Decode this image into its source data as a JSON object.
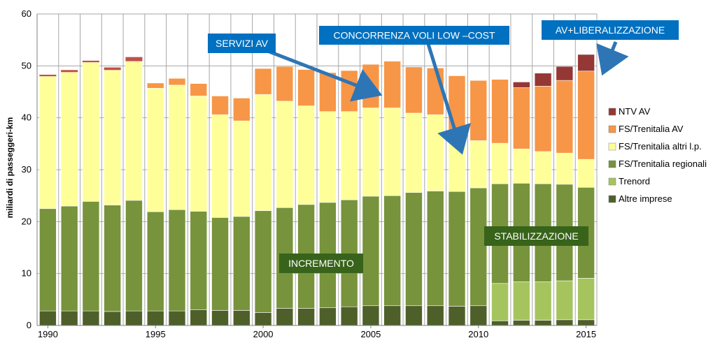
{
  "chart_data": {
    "type": "bar",
    "stacked": true,
    "ylabel": "miliardi di passeggeri-km",
    "xlabel": "",
    "ylim": [
      0,
      60
    ],
    "yticks": [
      0,
      10,
      20,
      30,
      40,
      50,
      60
    ],
    "xtick_labels": [
      "1990",
      "1995",
      "2000",
      "2005",
      "2010",
      "2015"
    ],
    "grid": "vertical and horizontal gridlines",
    "legend_position": "right",
    "categories": [
      "1990",
      "1991",
      "1992",
      "1993",
      "1994",
      "1995",
      "1996",
      "1997",
      "1998",
      "1999",
      "2000",
      "2001",
      "2002",
      "2003",
      "2004",
      "2005",
      "2006",
      "2007",
      "2008",
      "2009",
      "2010",
      "2011",
      "2012",
      "2013",
      "2014",
      "2015"
    ],
    "series": [
      {
        "name": "Altre imprese",
        "color": "#4f5f2a",
        "values": [
          2.8,
          2.8,
          2.8,
          2.7,
          2.8,
          2.8,
          2.8,
          3.0,
          2.9,
          2.9,
          2.5,
          3.3,
          3.3,
          3.4,
          3.6,
          3.8,
          3.8,
          3.8,
          3.8,
          3.7,
          3.8,
          0.9,
          1.0,
          1.0,
          1.1,
          1.1
        ]
      },
      {
        "name": "Trenord",
        "color": "#a6c45e",
        "values": [
          0,
          0,
          0,
          0,
          0,
          0,
          0,
          0,
          0,
          0,
          0,
          0,
          0,
          0,
          0,
          0,
          0,
          0,
          0,
          0,
          0,
          7.2,
          7.4,
          7.4,
          7.5,
          8.0
        ]
      },
      {
        "name": "FS/Trenitalia regionali",
        "color": "#77933c",
        "values": [
          19.7,
          20.2,
          21.1,
          20.5,
          21.3,
          19.1,
          19.5,
          19.0,
          17.9,
          18.1,
          19.6,
          19.4,
          20.0,
          20.3,
          20.6,
          21.1,
          21.2,
          21.8,
          22.1,
          22.1,
          22.7,
          19.2,
          19.0,
          18.9,
          18.6,
          17.5
        ]
      },
      {
        "name": "FS/Trenitalia altri l.p.",
        "color": "#ffff99",
        "values": [
          25.5,
          25.8,
          26.8,
          26.0,
          26.8,
          23.8,
          24.0,
          22.2,
          19.8,
          18.4,
          22.4,
          20.5,
          19.0,
          17.5,
          17.0,
          17.0,
          16.9,
          15.3,
          14.7,
          11.5,
          9.1,
          7.8,
          6.6,
          6.2,
          6.0,
          5.4
        ]
      },
      {
        "name": "FS/Trenitalia AV",
        "color": "#f79646",
        "values": [
          0,
          0,
          0,
          0,
          0,
          1.0,
          1.3,
          2.4,
          3.6,
          4.4,
          5.0,
          6.7,
          7.0,
          7.5,
          7.9,
          8.4,
          9.0,
          8.9,
          9.0,
          10.8,
          11.6,
          12.3,
          11.8,
          12.6,
          14.0,
          17.0
        ]
      },
      {
        "name": "NTV AV",
        "color": "#953735",
        "values": [
          0,
          0,
          0,
          0,
          0,
          0,
          0,
          0,
          0,
          0,
          0,
          0,
          0,
          0,
          0,
          0,
          0,
          0,
          0,
          0,
          0,
          0,
          1.1,
          2.5,
          2.7,
          3.2
        ]
      }
    ],
    "totals_top_fill": [
      0.3,
      0.4,
      0.3,
      0.5,
      0.8,
      0,
      0,
      0,
      0,
      0,
      0,
      0,
      0,
      0,
      0,
      0,
      0,
      0,
      0,
      0,
      0,
      0,
      0,
      0,
      0,
      0
    ],
    "annotations": [
      {
        "text": "SERVIZI AV",
        "style": "blue-box"
      },
      {
        "text": "CONCORRENZA VOLI LOW –COST",
        "style": "blue-box"
      },
      {
        "text": "AV+LIBERALIZZAZIONE",
        "style": "blue-box"
      },
      {
        "text": "INCREMENTO",
        "style": "green-box"
      },
      {
        "text": "STABILIZZAZIONE",
        "style": "green-box"
      }
    ]
  },
  "colors": {
    "annotation_blue": "#0070c0",
    "annotation_green": "#38631a",
    "arrow_blue": "#2e75b6",
    "grid": "#a6a6a6",
    "bar_outline": "#ffffff"
  }
}
